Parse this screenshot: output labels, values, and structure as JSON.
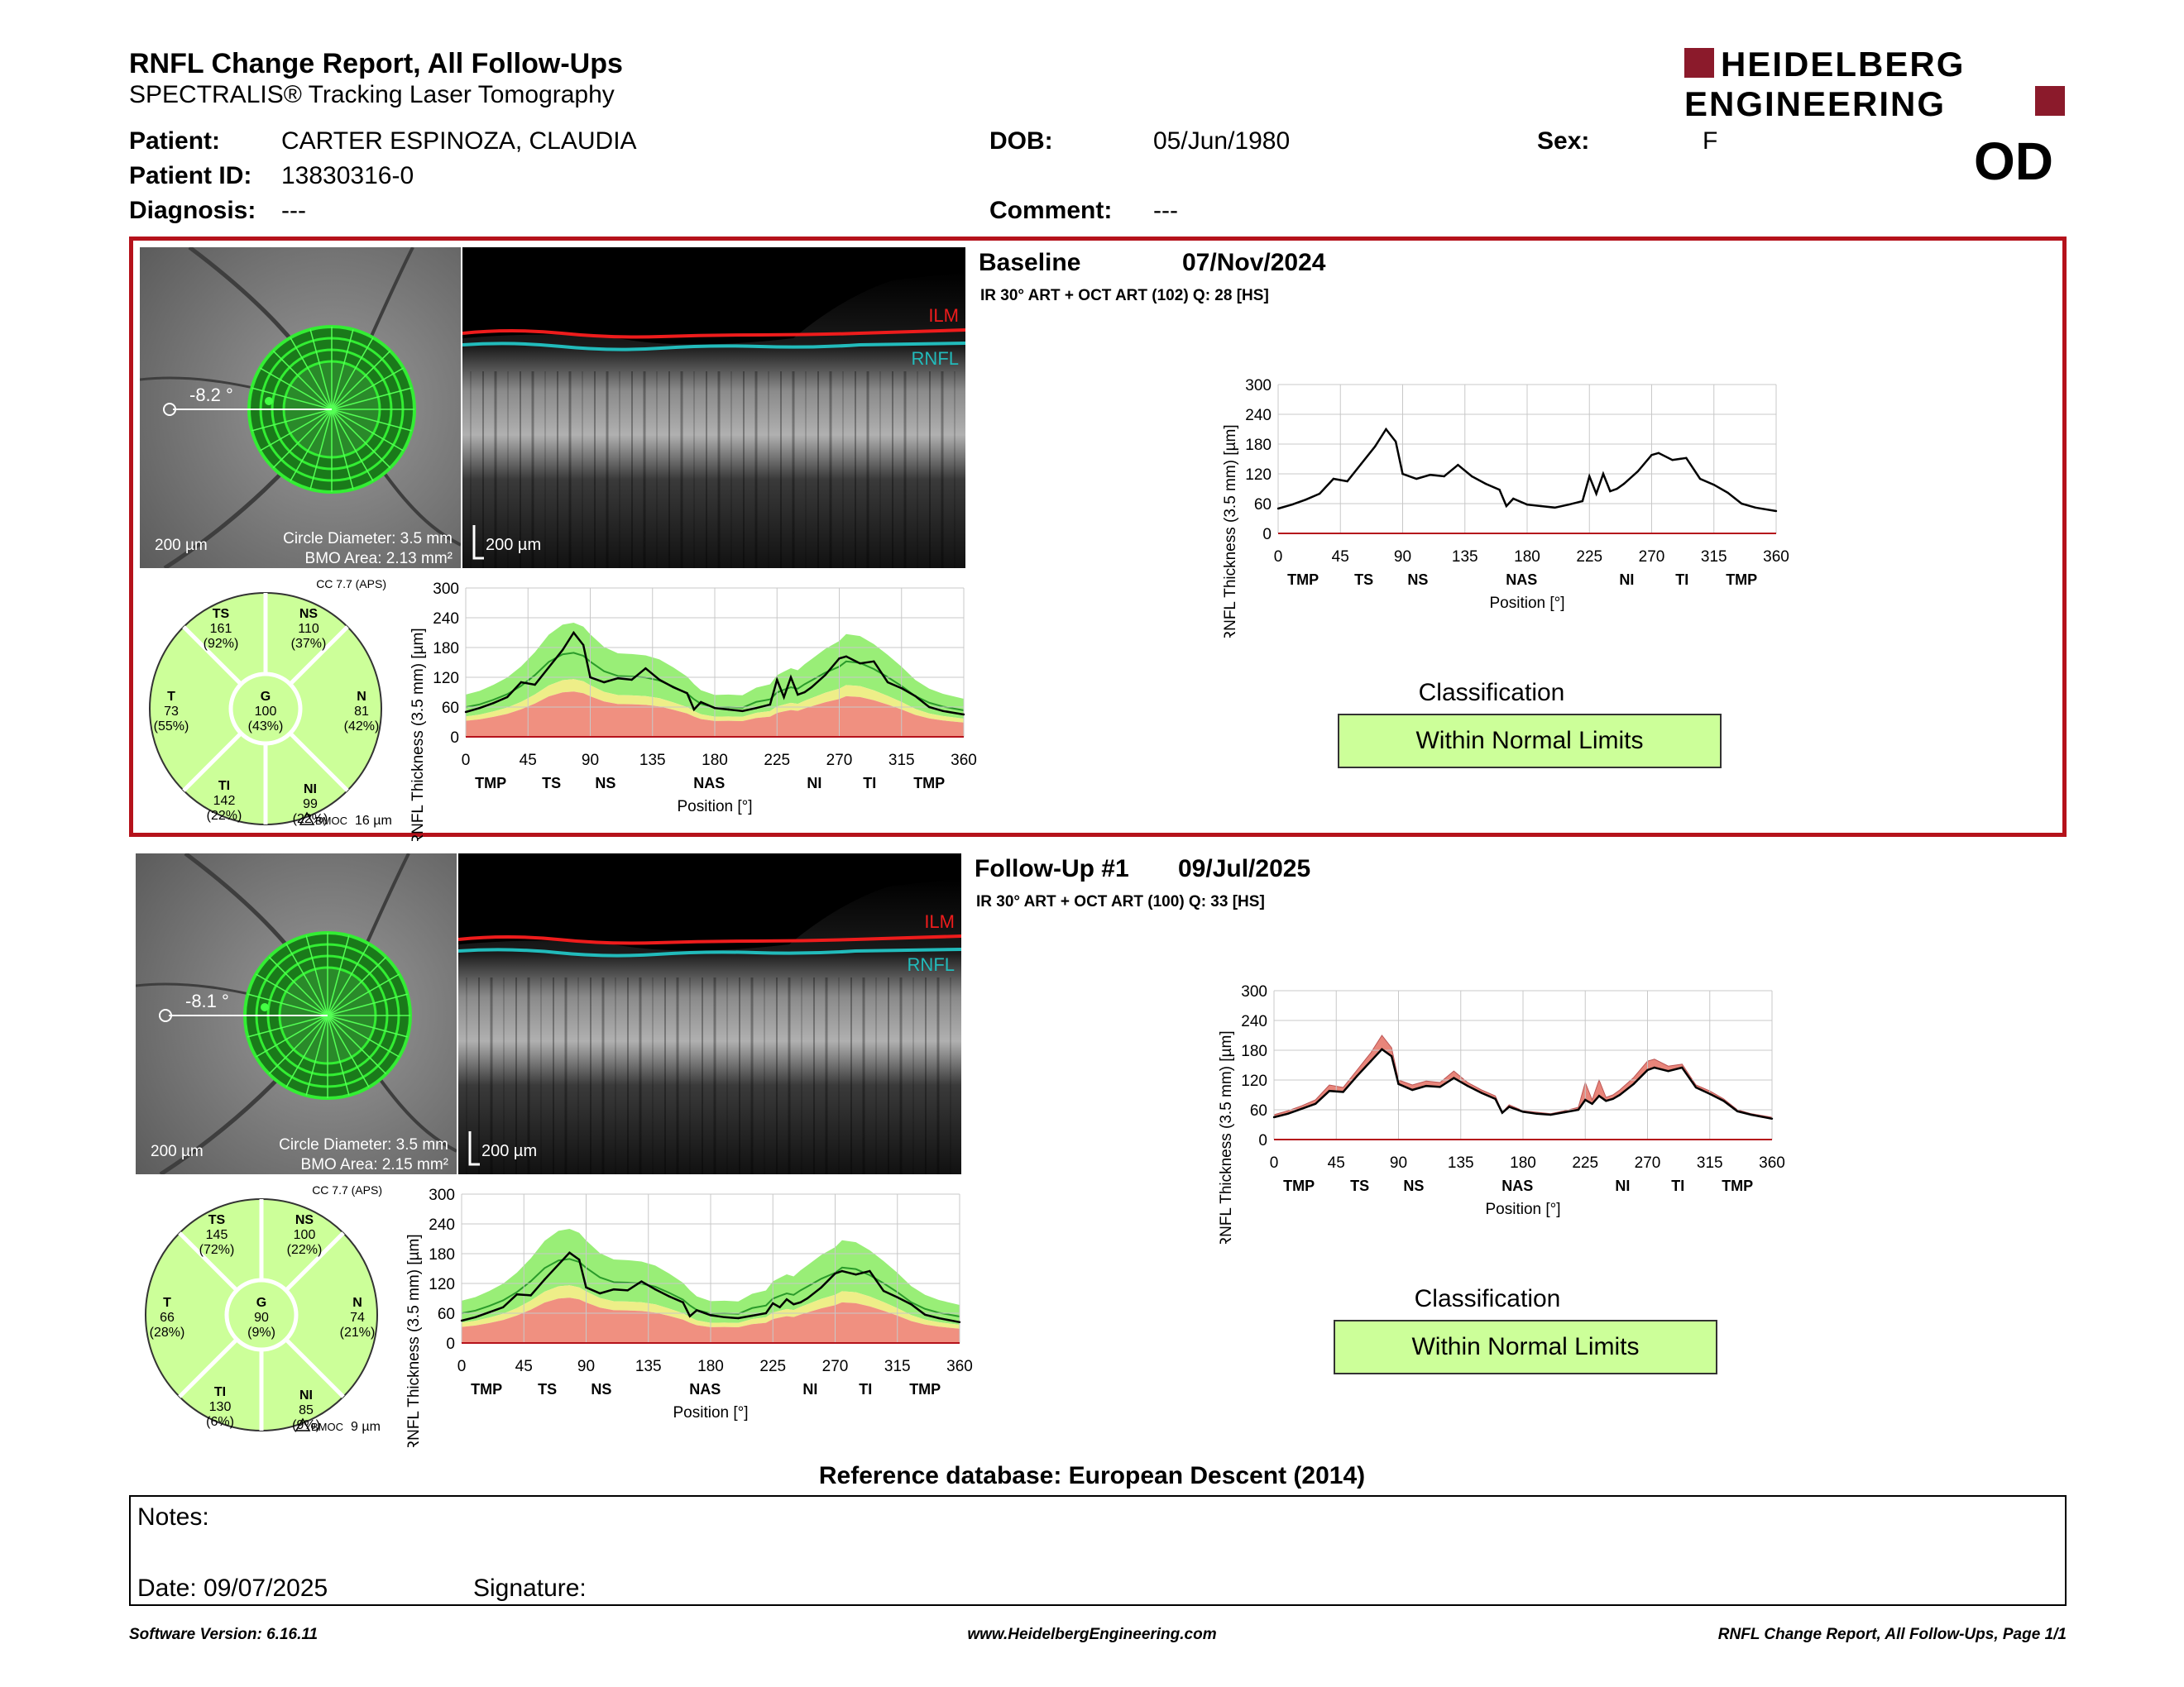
{
  "header": {
    "title": "RNFL Change Report, All Follow-Ups",
    "subtitle": "SPECTRALIS® Tracking Laser Tomography",
    "logo_line1": "HEIDELBERG",
    "logo_line2": "ENGINEERING",
    "brand_color": "#8b1a2b"
  },
  "patient": {
    "patient_label": "Patient:",
    "patient_name": "CARTER ESPINOZA, CLAUDIA",
    "id_label": "Patient ID:",
    "id": "13830316-0",
    "diagnosis_label": "Diagnosis:",
    "diagnosis": "---",
    "dob_label": "DOB:",
    "dob": "05/Jun/1980",
    "comment_label": "Comment:",
    "comment": "---",
    "sex_label": "Sex:",
    "sex": "F",
    "eye": "OD"
  },
  "scans": [
    {
      "title": "Baseline",
      "date": "07/Nov/2024",
      "info": "IR 30° ART + OCT ART (102) Q: 28 [HS]",
      "angle": "-8.2 °",
      "scale_fundus": "200 µm",
      "circle_diameter": "Circle Diameter: 3.5 mm",
      "bmo_area": "BMO Area: 2.13 mm²",
      "scale_bscan": "200 µm",
      "ilm": "ILM",
      "rnfl": "RNFL",
      "cc": "CC 7.7 (APS)",
      "bmoc": "16 µm",
      "bmoc_label": "BMOC",
      "sectors": {
        "TS": {
          "label": "TS",
          "value": "161",
          "pct": "(92%)"
        },
        "NS": {
          "label": "NS",
          "value": "110",
          "pct": "(37%)"
        },
        "T": {
          "label": "T",
          "value": "73",
          "pct": "(55%)"
        },
        "G": {
          "label": "G",
          "value": "100",
          "pct": "(43%)"
        },
        "N": {
          "label": "N",
          "value": "81",
          "pct": "(42%)"
        },
        "TI": {
          "label": "TI",
          "value": "142",
          "pct": "(22%)"
        },
        "NI": {
          "label": "NI",
          "value": "99",
          "pct": "(22%)"
        }
      },
      "classification_title": "Classification",
      "classification": "Within Normal Limits",
      "selected": true
    },
    {
      "title": "Follow-Up #1",
      "date": "09/Jul/2025",
      "info": "IR 30° ART + OCT ART (100) Q: 33 [HS]",
      "angle": "-8.1 °",
      "scale_fundus": "200 µm",
      "circle_diameter": "Circle Diameter: 3.5 mm",
      "bmo_area": "BMO Area: 2.15 mm²",
      "scale_bscan": "200 µm",
      "ilm": "ILM",
      "rnfl": "RNFL",
      "cc": "CC 7.7 (APS)",
      "bmoc": "9 µm",
      "bmoc_label": "BMOC",
      "sectors": {
        "TS": {
          "label": "TS",
          "value": "145",
          "pct": "(72%)"
        },
        "NS": {
          "label": "NS",
          "value": "100",
          "pct": "(22%)"
        },
        "T": {
          "label": "T",
          "value": "66",
          "pct": "(28%)"
        },
        "G": {
          "label": "G",
          "value": "90",
          "pct": "(9%)"
        },
        "N": {
          "label": "N",
          "value": "74",
          "pct": "(21%)"
        },
        "TI": {
          "label": "TI",
          "value": "130",
          "pct": "(6%)"
        },
        "NI": {
          "label": "NI",
          "value": "85",
          "pct": "(9%)"
        }
      },
      "classification_title": "Classification",
      "classification": "Within Normal Limits",
      "selected": false
    }
  ],
  "chart_data": [
    {
      "type": "line",
      "scan": "Baseline",
      "ylabel": "RNFL Thickness (3.5 mm) [µm]",
      "xlabel": "Position [°]",
      "xlim": [
        0,
        360
      ],
      "ylim": [
        0,
        300
      ],
      "xticks": [
        0,
        45,
        90,
        135,
        180,
        225,
        270,
        315,
        360
      ],
      "yticks": [
        0,
        60,
        120,
        180,
        240,
        300
      ],
      "sector_labels": [
        {
          "x": 18,
          "t": "TMP"
        },
        {
          "x": 62,
          "t": "TS"
        },
        {
          "x": 101,
          "t": "NS"
        },
        {
          "x": 176,
          "t": "NAS"
        },
        {
          "x": 252,
          "t": "NI"
        },
        {
          "x": 292,
          "t": "TI"
        },
        {
          "x": 335,
          "t": "TMP"
        }
      ],
      "x": [
        0,
        10,
        20,
        30,
        40,
        50,
        60,
        70,
        78,
        85,
        90,
        100,
        110,
        120,
        130,
        140,
        150,
        160,
        165,
        170,
        180,
        190,
        200,
        210,
        220,
        225,
        230,
        235,
        240,
        245,
        250,
        260,
        270,
        275,
        285,
        295,
        305,
        315,
        325,
        335,
        345,
        360
      ],
      "series": [
        {
          "values": [
            50,
            58,
            68,
            80,
            110,
            105,
            140,
            175,
            210,
            185,
            120,
            110,
            118,
            115,
            138,
            115,
            100,
            88,
            55,
            70,
            58,
            55,
            52,
            58,
            65,
            115,
            80,
            120,
            85,
            90,
            100,
            125,
            158,
            162,
            148,
            152,
            110,
            98,
            82,
            60,
            52,
            45
          ]
        }
      ]
    },
    {
      "type": "line",
      "scan": "Follow-Up #1",
      "ylabel": "RNFL Thickness (3.5 mm) [µm]",
      "xlabel": "Position [°]",
      "xlim": [
        0,
        360
      ],
      "ylim": [
        0,
        300
      ],
      "xticks": [
        0,
        45,
        90,
        135,
        180,
        225,
        270,
        315,
        360
      ],
      "yticks": [
        0,
        60,
        120,
        180,
        240,
        300
      ],
      "sector_labels": [
        {
          "x": 18,
          "t": "TMP"
        },
        {
          "x": 62,
          "t": "TS"
        },
        {
          "x": 101,
          "t": "NS"
        },
        {
          "x": 176,
          "t": "NAS"
        },
        {
          "x": 252,
          "t": "NI"
        },
        {
          "x": 292,
          "t": "TI"
        },
        {
          "x": 335,
          "t": "TMP"
        }
      ],
      "x": [
        0,
        10,
        20,
        30,
        40,
        50,
        60,
        70,
        78,
        85,
        90,
        100,
        110,
        120,
        130,
        140,
        150,
        160,
        165,
        170,
        180,
        190,
        200,
        210,
        220,
        225,
        230,
        235,
        240,
        245,
        250,
        260,
        270,
        275,
        285,
        295,
        305,
        315,
        325,
        335,
        345,
        360
      ],
      "series": [
        {
          "values": [
            45,
            52,
            62,
            72,
            98,
            96,
            128,
            158,
            182,
            168,
            112,
            100,
            108,
            106,
            124,
            108,
            94,
            82,
            54,
            66,
            56,
            52,
            50,
            55,
            60,
            80,
            72,
            88,
            78,
            82,
            90,
            112,
            140,
            145,
            138,
            145,
            105,
            92,
            78,
            57,
            50,
            42
          ]
        }
      ],
      "baseline_reference": true
    }
  ],
  "footer": {
    "reference_db": "Reference database: European Descent (2014)",
    "notes_label": "Notes:",
    "date_label": "Date: 09/07/2025",
    "signature_label": "Signature:",
    "software": "Software Version: 6.16.11",
    "website": "www.HeidelbergEngineering.com",
    "page": "RNFL Change Report, All Follow-Ups, Page 1/1"
  }
}
